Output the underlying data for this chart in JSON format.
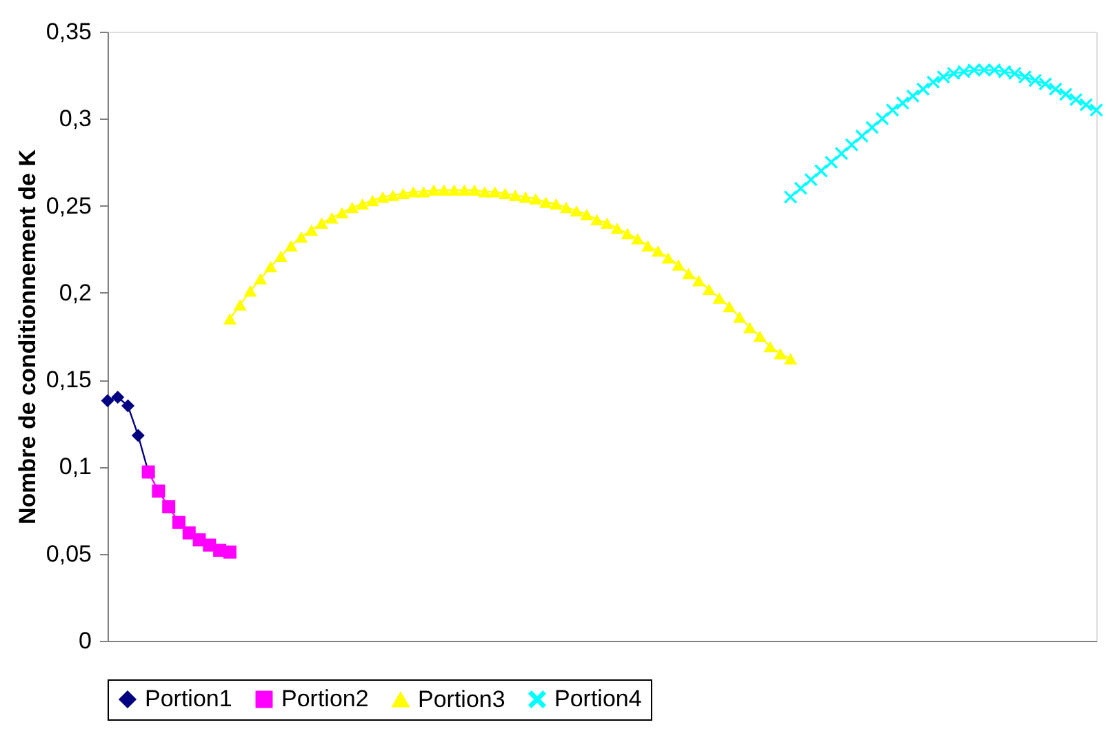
{
  "chart_data": {
    "type": "line",
    "ylabel": "Nombre de conditionnement de K",
    "categories": [
      null,
      null,
      null,
      null,
      null,
      null,
      null,
      null,
      null,
      null,
      null,
      null,
      null,
      null,
      null,
      null,
      null,
      null,
      null,
      null,
      null,
      null,
      null,
      null,
      null,
      null,
      null,
      null,
      null,
      null,
      null,
      null,
      null,
      null,
      null,
      null,
      null,
      null,
      null,
      null,
      null,
      null,
      null,
      null,
      null,
      null,
      null,
      null,
      null,
      null,
      null,
      null,
      null,
      null,
      null,
      null,
      null,
      null,
      null,
      null,
      null,
      null,
      null,
      null,
      null,
      null,
      null,
      null,
      null,
      null,
      null,
      null,
      null,
      null,
      null,
      null,
      null,
      null,
      null,
      null,
      null,
      null,
      null,
      null,
      null,
      null,
      null,
      null,
      null,
      null,
      null,
      null,
      null,
      null,
      null,
      null,
      null,
      null
    ],
    "series": [
      {
        "name": "Portion1",
        "color": "#000080",
        "marker": "diamond",
        "values": [
          0.138,
          0.14,
          0.135,
          0.118,
          0.097,
          null,
          null,
          null,
          null,
          null,
          null,
          null,
          null,
          null,
          null,
          null,
          null,
          null,
          null,
          null,
          null,
          null,
          null,
          null,
          null,
          null,
          null,
          null,
          null,
          null,
          null,
          null,
          null,
          null,
          null,
          null,
          null,
          null,
          null,
          null,
          null,
          null,
          null,
          null,
          null,
          null,
          null,
          null,
          null,
          null,
          null,
          null,
          null,
          null,
          null,
          null,
          null,
          null,
          null,
          null,
          null,
          null,
          null,
          null,
          null,
          null,
          null,
          null,
          null,
          null,
          null,
          null,
          null,
          null,
          null,
          null,
          null,
          null,
          null,
          null,
          null,
          null,
          null,
          null,
          null,
          null,
          null,
          null,
          null,
          null,
          null,
          null,
          null,
          null,
          null,
          null,
          null,
          null
        ]
      },
      {
        "name": "Portion2",
        "color": "#ff00ff",
        "marker": "square",
        "values": [
          null,
          null,
          null,
          null,
          0.097,
          0.086,
          0.077,
          0.068,
          0.062,
          0.058,
          0.055,
          0.052,
          0.051,
          null,
          null,
          null,
          null,
          null,
          null,
          null,
          null,
          null,
          null,
          null,
          null,
          null,
          null,
          null,
          null,
          null,
          null,
          null,
          null,
          null,
          null,
          null,
          null,
          null,
          null,
          null,
          null,
          null,
          null,
          null,
          null,
          null,
          null,
          null,
          null,
          null,
          null,
          null,
          null,
          null,
          null,
          null,
          null,
          null,
          null,
          null,
          null,
          null,
          null,
          null,
          null,
          null,
          null,
          null,
          null,
          null,
          null,
          null,
          null,
          null,
          null,
          null,
          null,
          null,
          null,
          null,
          null,
          null,
          null,
          null,
          null,
          null,
          null,
          null,
          null,
          null,
          null,
          null,
          null,
          null,
          null,
          null,
          null,
          null
        ]
      },
      {
        "name": "Portion3",
        "color": "#ffff00",
        "marker": "triangle",
        "values": [
          null,
          null,
          null,
          null,
          null,
          null,
          null,
          null,
          null,
          null,
          null,
          null,
          0.185,
          0.193,
          0.201,
          0.208,
          0.215,
          0.221,
          0.227,
          0.232,
          0.236,
          0.24,
          0.243,
          0.246,
          0.249,
          0.251,
          0.253,
          0.255,
          0.256,
          0.257,
          0.258,
          0.258,
          0.259,
          0.259,
          0.259,
          0.259,
          0.259,
          0.258,
          0.258,
          0.257,
          0.256,
          0.255,
          0.254,
          0.252,
          0.251,
          0.249,
          0.247,
          0.245,
          0.242,
          0.24,
          0.237,
          0.234,
          0.231,
          0.227,
          0.224,
          0.22,
          0.216,
          0.211,
          0.207,
          0.202,
          0.197,
          0.192,
          0.186,
          0.18,
          0.175,
          0.169,
          0.165,
          0.162,
          null,
          null,
          null,
          null,
          null,
          null,
          null,
          null,
          null,
          null,
          null,
          null,
          null,
          null,
          null,
          null,
          null,
          null,
          null,
          null,
          null,
          null,
          null,
          null,
          null,
          null,
          null,
          null,
          null,
          null
        ]
      },
      {
        "name": "Portion4",
        "color": "#00ffff",
        "marker": "cross",
        "values": [
          null,
          null,
          null,
          null,
          null,
          null,
          null,
          null,
          null,
          null,
          null,
          null,
          null,
          null,
          null,
          null,
          null,
          null,
          null,
          null,
          null,
          null,
          null,
          null,
          null,
          null,
          null,
          null,
          null,
          null,
          null,
          null,
          null,
          null,
          null,
          null,
          null,
          null,
          null,
          null,
          null,
          null,
          null,
          null,
          null,
          null,
          null,
          null,
          null,
          null,
          null,
          null,
          null,
          null,
          null,
          null,
          null,
          null,
          null,
          null,
          null,
          null,
          null,
          null,
          null,
          null,
          null,
          0.255,
          0.26,
          0.265,
          0.27,
          0.275,
          0.28,
          0.285,
          0.29,
          0.295,
          0.3,
          0.305,
          0.309,
          0.313,
          0.317,
          0.321,
          0.324,
          0.326,
          0.327,
          0.328,
          0.328,
          0.328,
          0.327,
          0.326,
          0.324,
          0.322,
          0.32,
          0.317,
          0.314,
          0.311,
          0.308,
          0.305
        ]
      }
    ],
    "ylim": [
      0,
      0.35
    ],
    "yticks": [
      {
        "value": 0,
        "label": "0"
      },
      {
        "value": 0.05,
        "label": "0,05"
      },
      {
        "value": 0.1,
        "label": "0,1"
      },
      {
        "value": 0.15,
        "label": "0,15"
      },
      {
        "value": 0.2,
        "label": "0,2"
      },
      {
        "value": 0.25,
        "label": "0,25"
      },
      {
        "value": 0.3,
        "label": "0,3"
      },
      {
        "value": 0.35,
        "label": "0,35"
      }
    ],
    "tick_labels": "y",
    "grid": false,
    "legend": "bottom",
    "line_style": "solid"
  }
}
